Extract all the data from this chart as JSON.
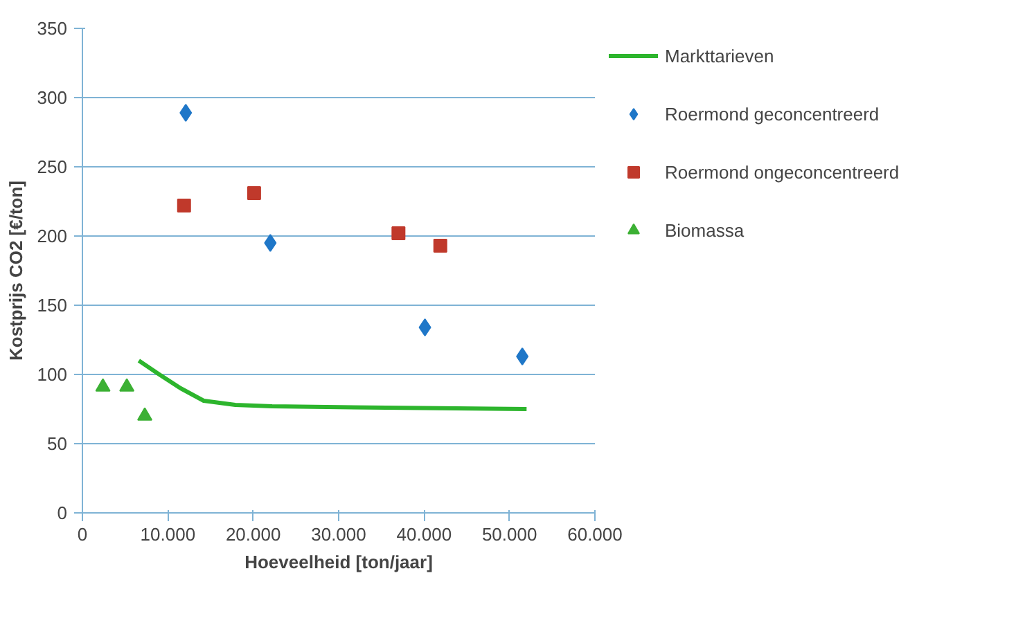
{
  "chart_data": {
    "type": "scatter",
    "xlabel": "Hoeveelheid [ton/jaar]",
    "ylabel": "Kostprijs CO2 [€/ton]",
    "xlim": [
      0,
      60000
    ],
    "ylim": [
      0,
      350
    ],
    "xticks": [
      0,
      {
        "value": 10000,
        "label": "10.000"
      },
      {
        "value": 20000,
        "label": "20.000"
      },
      {
        "value": 30000,
        "label": "30.000"
      },
      {
        "value": 40000,
        "label": "40.000"
      },
      {
        "value": 50000,
        "label": "50.000"
      },
      {
        "value": 60000,
        "label": "60.000"
      }
    ],
    "yticks": [
      0,
      50,
      100,
      150,
      200,
      250,
      300,
      350
    ],
    "grid": "y",
    "legend": "right",
    "series": [
      {
        "name": "Markttarieven",
        "type": "line",
        "color": "#2db52d",
        "marker": "none",
        "x": [
          6600,
          9000,
          11500,
          14200,
          17900,
          22200,
          35600,
          52000
        ],
        "values": [
          110,
          100,
          90,
          81,
          78,
          77,
          76,
          75
        ]
      },
      {
        "name": "Roermond geconcentreerd",
        "color": "#1f77c8",
        "marker": "diamond",
        "x": [
          12100,
          22000,
          40100,
          51500
        ],
        "values": [
          289,
          195,
          134,
          113
        ]
      },
      {
        "name": "Roermond ongeconcentreerd",
        "color": "#c0392b",
        "marker": "square",
        "x": [
          11900,
          20100,
          37000,
          41900
        ],
        "values": [
          222,
          231,
          202,
          193
        ]
      },
      {
        "name": "Biomassa",
        "color": "#3cb034",
        "marker": "triangle",
        "x": [
          2400,
          5200,
          7300
        ],
        "values": [
          91,
          91,
          70
        ]
      }
    ]
  }
}
